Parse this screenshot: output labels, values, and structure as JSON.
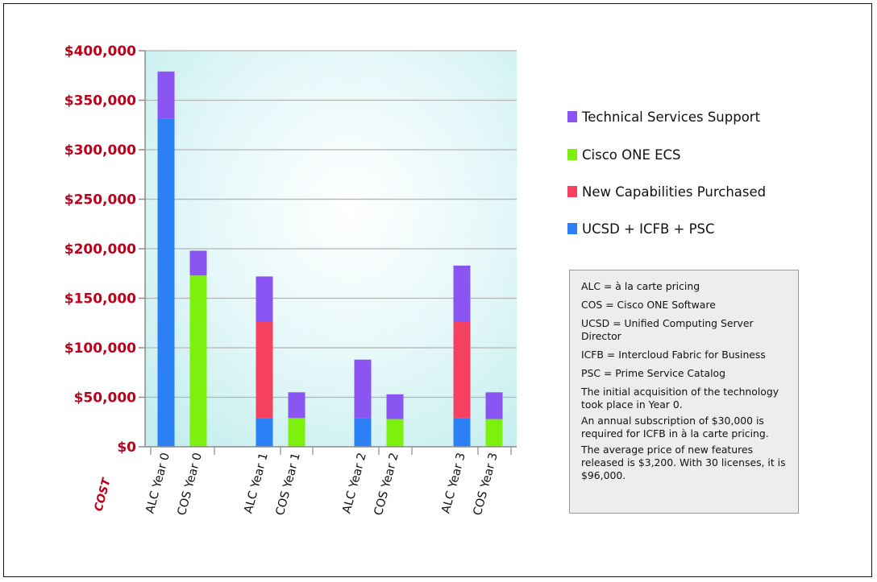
{
  "chart_data": {
    "type": "bar",
    "stacked": true,
    "ylabel": "COST",
    "ylim": [
      0,
      400000
    ],
    "yticks": [
      0,
      50000,
      100000,
      150000,
      200000,
      250000,
      300000,
      350000,
      400000
    ],
    "ytick_labels": [
      "$0",
      "$50,000",
      "$100,000",
      "$150,000",
      "$200,000",
      "$250,000",
      "$300,000",
      "$350,000",
      "$400,000"
    ],
    "categories": [
      "ALC Year 0",
      "COS Year 0",
      "ALC Year 1",
      "COS Year 1",
      "ALC Year 2",
      "COS Year 2",
      "ALC Year 3",
      "COS Year 3"
    ],
    "series": [
      {
        "name": "UCSD + ICFB + PSC",
        "color": "#2b80f5",
        "values": [
          331000,
          0,
          29000,
          0,
          29000,
          0,
          29000,
          0
        ]
      },
      {
        "name": "New Capabilities Purchased",
        "color": "#f5405f",
        "values": [
          0,
          0,
          97000,
          0,
          0,
          0,
          97000,
          0
        ]
      },
      {
        "name": "Cisco ONE ECS",
        "color": "#7ef00e",
        "values": [
          0,
          173000,
          0,
          29000,
          0,
          28000,
          0,
          28000
        ]
      },
      {
        "name": "Technical Services Support",
        "color": "#8a55f2",
        "values": [
          48000,
          25000,
          46000,
          26000,
          59000,
          25000,
          57000,
          27000
        ]
      }
    ],
    "legend": {
      "placement": "right",
      "order": [
        "Technical Services Support",
        "Cisco ONE ECS",
        "New Capabilities Purchased",
        "UCSD + ICFB + PSC"
      ]
    },
    "grid": true
  },
  "notes": [
    "ALC = à la carte pricing",
    "COS = Cisco ONE Software",
    "UCSD = Unified Computing Server Director",
    "ICFB = Intercloud Fabric for Business",
    "PSC = Prime Service Catalog",
    "The initial acquisition of the technology took place in Year 0.",
    "An annual subscription of $30,000 is required for ICFB in à la carte pricing.",
    "The average price of new features released is $3,200. With 30 licenses, it is $96,000."
  ]
}
